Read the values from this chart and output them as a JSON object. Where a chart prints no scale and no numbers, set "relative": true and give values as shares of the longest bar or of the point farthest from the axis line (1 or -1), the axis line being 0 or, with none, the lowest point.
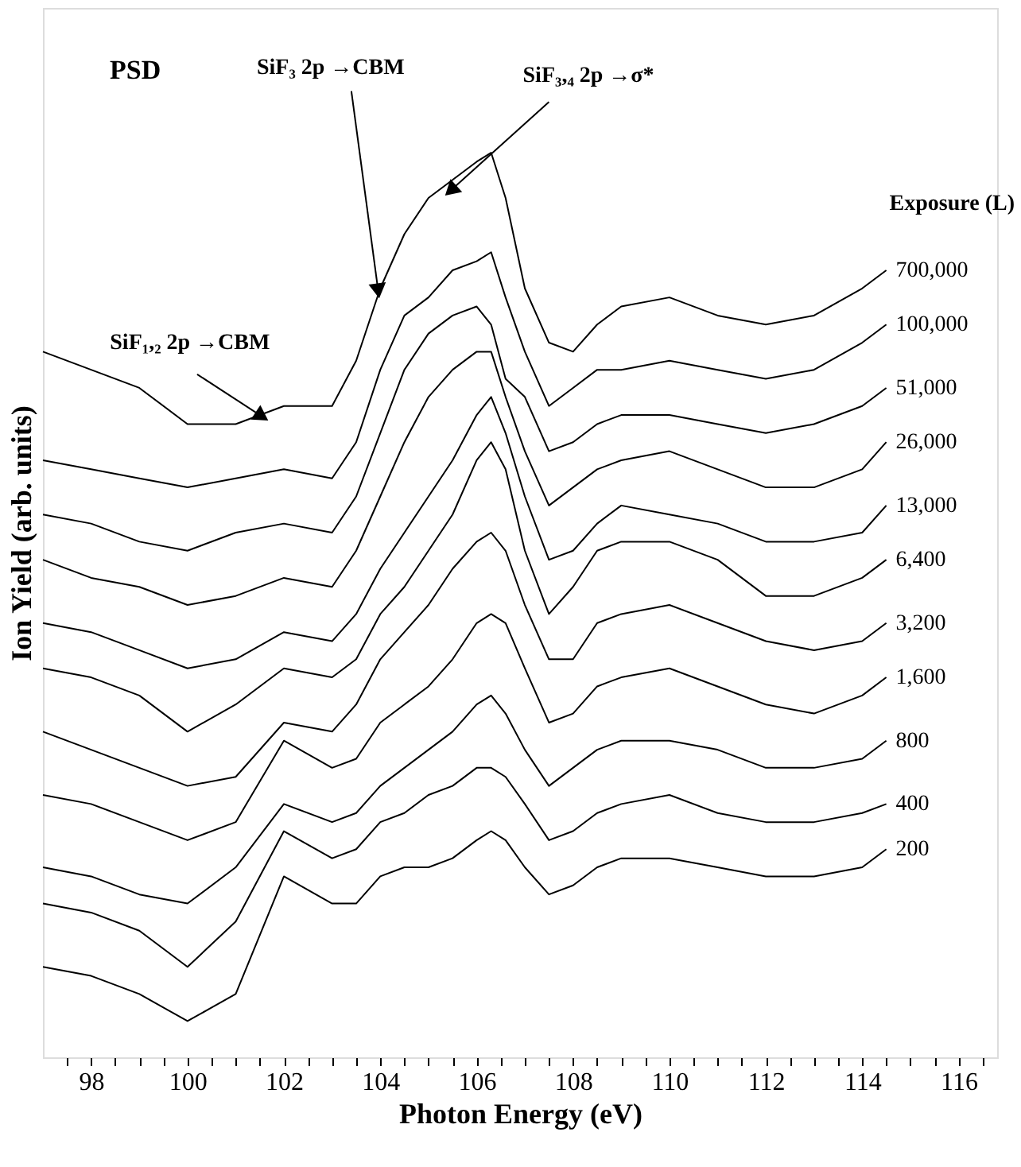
{
  "chart_data": {
    "type": "line",
    "relative": true,
    "xlabel": "Photon Energy (eV)",
    "ylabel": "Ion Yield (arb. units)",
    "legend_title": "Exposure (L)",
    "legend": false,
    "grid": false,
    "marker": "none",
    "line_style": "solid",
    "annotations": [
      "PSD",
      {
        "text": "SiF₁,₂ 2p →CBM",
        "x": 101.5,
        "y": 0.71
      },
      {
        "text": "SiF₃ 2p →CBM",
        "x": 103.95,
        "y": 0.85
      },
      {
        "text": "SiF₃,₄ 2p →σ*",
        "x": 105.5,
        "y": 0.96
      }
    ],
    "xlim": [
      97,
      116.8
    ],
    "xticks": [
      {
        "value": 97.5,
        "label": null
      },
      98,
      {
        "value": 98.5,
        "label": null
      },
      {
        "value": 99,
        "label": null
      },
      {
        "value": 99.5,
        "label": null
      },
      100,
      {
        "value": 100.5,
        "label": null
      },
      {
        "value": 101,
        "label": null
      },
      {
        "value": 101.5,
        "label": null
      },
      102,
      {
        "value": 102.5,
        "label": null
      },
      {
        "value": 103,
        "label": null
      },
      {
        "value": 103.5,
        "label": null
      },
      104,
      {
        "value": 104.5,
        "label": null
      },
      {
        "value": 105,
        "label": null
      },
      {
        "value": 105.5,
        "label": null
      },
      106,
      {
        "value": 106.5,
        "label": null
      },
      {
        "value": 107,
        "label": null
      },
      {
        "value": 107.5,
        "label": null
      },
      108,
      {
        "value": 108.5,
        "label": null
      },
      {
        "value": 109,
        "label": null
      },
      {
        "value": 109.5,
        "label": null
      },
      110,
      {
        "value": 110.5,
        "label": null
      },
      {
        "value": 111,
        "label": null
      },
      {
        "value": 111.5,
        "label": null
      },
      112,
      {
        "value": 112.5,
        "label": null
      },
      {
        "value": 113,
        "label": null
      },
      {
        "value": 113.5,
        "label": null
      },
      114,
      {
        "value": 114.5,
        "label": null
      },
      {
        "value": 115,
        "label": null
      },
      {
        "value": 115.5,
        "label": null
      },
      116,
      {
        "value": 116.5,
        "label": null
      }
    ],
    "x": [
      97,
      98,
      99,
      100,
      101,
      102,
      103,
      103.5,
      104,
      104.5,
      105,
      105.5,
      106,
      106.3,
      106.6,
      107,
      107.5,
      108,
      108.5,
      109,
      110,
      111,
      112,
      113,
      114,
      114.5
    ],
    "series": [
      {
        "name": "700,000",
        "color": "#000000",
        "values": [
          0.78,
          0.76,
          0.74,
          0.7,
          0.7,
          0.72,
          0.72,
          0.77,
          0.85,
          0.91,
          0.95,
          0.97,
          0.99,
          1.0,
          0.95,
          0.85,
          0.79,
          0.78,
          0.81,
          0.83,
          0.84,
          0.82,
          0.81,
          0.82,
          0.85,
          0.87
        ]
      },
      {
        "name": "100,000",
        "color": "#000000",
        "values": [
          0.66,
          0.65,
          0.64,
          0.63,
          0.64,
          0.65,
          0.64,
          0.68,
          0.76,
          0.82,
          0.84,
          0.87,
          0.88,
          0.89,
          0.84,
          0.78,
          0.72,
          0.74,
          0.76,
          0.76,
          0.77,
          0.76,
          0.75,
          0.76,
          0.79,
          0.81
        ]
      },
      {
        "name": "51,000",
        "color": "#000000",
        "values": [
          0.6,
          0.59,
          0.57,
          0.56,
          0.58,
          0.59,
          0.58,
          0.62,
          0.69,
          0.76,
          0.8,
          0.82,
          0.83,
          0.81,
          0.75,
          0.73,
          0.67,
          0.68,
          0.7,
          0.71,
          0.71,
          0.7,
          0.69,
          0.7,
          0.72,
          0.74
        ]
      },
      {
        "name": "26,000",
        "color": "#000000",
        "values": [
          0.55,
          0.53,
          0.52,
          0.5,
          0.51,
          0.53,
          0.52,
          0.56,
          0.62,
          0.68,
          0.73,
          0.76,
          0.78,
          0.78,
          0.73,
          0.67,
          0.61,
          0.63,
          0.65,
          0.66,
          0.67,
          0.65,
          0.63,
          0.63,
          0.65,
          0.68
        ]
      },
      {
        "name": "13,000",
        "color": "#000000",
        "values": [
          0.48,
          0.47,
          0.45,
          0.43,
          0.44,
          0.47,
          0.46,
          0.49,
          0.54,
          0.58,
          0.62,
          0.66,
          0.71,
          0.73,
          0.69,
          0.62,
          0.55,
          0.56,
          0.59,
          0.61,
          0.6,
          0.59,
          0.57,
          0.57,
          0.58,
          0.61
        ]
      },
      {
        "name": "6,400",
        "color": "#000000",
        "values": [
          0.43,
          0.42,
          0.4,
          0.36,
          0.39,
          0.43,
          0.42,
          0.44,
          0.49,
          0.52,
          0.56,
          0.6,
          0.66,
          0.68,
          0.65,
          0.56,
          0.49,
          0.52,
          0.56,
          0.57,
          0.57,
          0.55,
          0.51,
          0.51,
          0.53,
          0.55
        ]
      },
      {
        "name": "3,200",
        "color": "#000000",
        "values": [
          0.36,
          0.34,
          0.32,
          0.3,
          0.31,
          0.37,
          0.36,
          0.39,
          0.44,
          0.47,
          0.5,
          0.54,
          0.57,
          0.58,
          0.56,
          0.5,
          0.44,
          0.44,
          0.48,
          0.49,
          0.5,
          0.48,
          0.46,
          0.45,
          0.46,
          0.48
        ]
      },
      {
        "name": "1,600",
        "color": "#000000",
        "values": [
          0.29,
          0.28,
          0.26,
          0.24,
          0.26,
          0.35,
          0.32,
          0.33,
          0.37,
          0.39,
          0.41,
          0.44,
          0.48,
          0.49,
          0.48,
          0.43,
          0.37,
          0.38,
          0.41,
          0.42,
          0.43,
          0.41,
          0.39,
          0.38,
          0.4,
          0.42
        ]
      },
      {
        "name": "800",
        "color": "#000000",
        "values": [
          0.21,
          0.2,
          0.18,
          0.17,
          0.21,
          0.28,
          0.26,
          0.27,
          0.3,
          0.32,
          0.34,
          0.36,
          0.39,
          0.4,
          0.38,
          0.34,
          0.3,
          0.32,
          0.34,
          0.35,
          0.35,
          0.34,
          0.32,
          0.32,
          0.33,
          0.35
        ]
      },
      {
        "name": "400",
        "color": "#000000",
        "values": [
          0.17,
          0.16,
          0.14,
          0.1,
          0.15,
          0.25,
          0.22,
          0.23,
          0.26,
          0.27,
          0.29,
          0.3,
          0.32,
          0.32,
          0.31,
          0.28,
          0.24,
          0.25,
          0.27,
          0.28,
          0.29,
          0.27,
          0.26,
          0.26,
          0.27,
          0.28
        ]
      },
      {
        "name": "200",
        "color": "#000000",
        "values": [
          0.1,
          0.09,
          0.07,
          0.04,
          0.07,
          0.2,
          0.17,
          0.17,
          0.2,
          0.21,
          0.21,
          0.22,
          0.24,
          0.25,
          0.24,
          0.21,
          0.18,
          0.19,
          0.21,
          0.22,
          0.22,
          0.21,
          0.2,
          0.2,
          0.21,
          0.23
        ]
      }
    ]
  }
}
